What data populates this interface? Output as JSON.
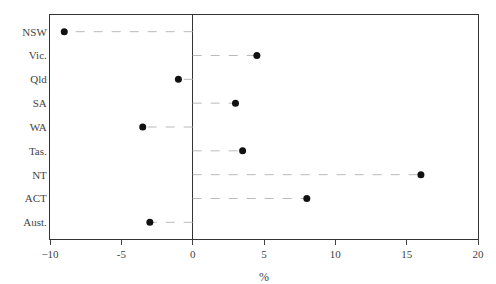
{
  "chart_data": {
    "type": "lollipop",
    "categories": [
      "NSW",
      "Vic.",
      "Qld",
      "SA",
      "WA",
      "Tas.",
      "NT",
      "ACT",
      "Aust."
    ],
    "values": [
      -9.0,
      4.5,
      -1.0,
      3.0,
      -3.5,
      3.5,
      16.0,
      8.0,
      -3.0
    ],
    "xlabel": "%",
    "xlim": [
      -10,
      20
    ],
    "xticks": [
      {
        "value": -10,
        "label": "−10"
      },
      -5,
      0,
      5,
      10,
      15,
      20
    ],
    "color": "#111111",
    "line_style": "dashed",
    "grid": false
  }
}
